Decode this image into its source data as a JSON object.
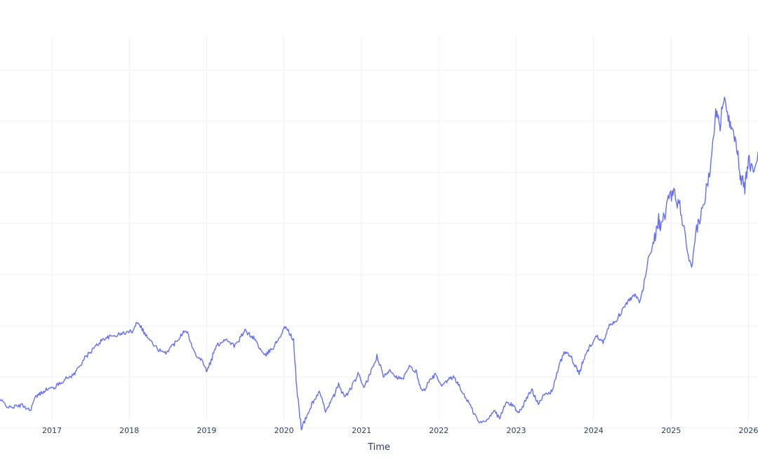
{
  "chart_data": {
    "type": "line",
    "title": "",
    "xlabel": "Time",
    "ylabel": "",
    "grid": true,
    "legend": "none",
    "xlim": [
      "2016-05-01",
      "2026-02-15"
    ],
    "ylim": [
      0,
      100
    ],
    "x_ticks": [
      "2017",
      "2018",
      "2019",
      "2020",
      "2021",
      "2022",
      "2023",
      "2024",
      "2025",
      "2026"
    ],
    "y_grid_values": [
      90,
      80,
      70,
      60,
      50,
      40,
      30,
      20
    ],
    "series": [
      {
        "color": "#636efa",
        "x": [
          "2016-05-01",
          "2016-06-15",
          "2016-08-15",
          "2016-09-20",
          "2016-10-15",
          "2016-12-01",
          "2017-01-15",
          "2017-03-01",
          "2017-04-15",
          "2017-06-01",
          "2017-07-15",
          "2017-09-01",
          "2017-10-15",
          "2017-12-01",
          "2018-01-15",
          "2018-02-10",
          "2018-03-15",
          "2018-05-01",
          "2018-06-15",
          "2018-08-01",
          "2018-09-25",
          "2018-11-01",
          "2018-12-15",
          "2019-01-03",
          "2019-02-15",
          "2019-04-01",
          "2019-05-15",
          "2019-07-01",
          "2019-08-15",
          "2019-10-01",
          "2019-11-15",
          "2019-12-20",
          "2020-01-10",
          "2020-02-15",
          "2020-03-01",
          "2020-03-23",
          "2020-04-15",
          "2020-05-15",
          "2020-06-15",
          "2020-07-15",
          "2020-08-15",
          "2020-09-15",
          "2020-10-15",
          "2020-11-15",
          "2020-12-15",
          "2021-01-15",
          "2021-02-15",
          "2021-03-15",
          "2021-04-15",
          "2021-05-15",
          "2021-06-15",
          "2021-07-15",
          "2021-08-15",
          "2021-09-15",
          "2021-10-15",
          "2021-11-15",
          "2021-12-15",
          "2022-01-15",
          "2022-02-15",
          "2022-03-15",
          "2022-04-15",
          "2022-05-15",
          "2022-06-15",
          "2022-07-10",
          "2022-08-15",
          "2022-09-15",
          "2022-10-15",
          "2022-11-15",
          "2022-12-15",
          "2023-01-15",
          "2023-02-15",
          "2023-03-15",
          "2023-04-15",
          "2023-05-15",
          "2023-06-15",
          "2023-07-15",
          "2023-08-15",
          "2023-09-15",
          "2023-10-25",
          "2023-11-15",
          "2023-12-15",
          "2024-01-15",
          "2024-02-15",
          "2024-03-15",
          "2024-04-15",
          "2024-05-15",
          "2024-06-15",
          "2024-07-15",
          "2024-08-05",
          "2024-08-20",
          "2024-09-15",
          "2024-10-15",
          "2024-11-01",
          "2024-11-15",
          "2024-12-15",
          "2025-01-10",
          "2025-02-15",
          "2025-03-15",
          "2025-04-08",
          "2025-05-01",
          "2025-06-01",
          "2025-07-01",
          "2025-07-20",
          "2025-08-05",
          "2025-08-20",
          "2025-09-10",
          "2025-10-01",
          "2025-10-20",
          "2025-11-10",
          "2025-11-25",
          "2025-12-15",
          "2026-01-01",
          "2026-01-20",
          "2026-02-15"
        ],
        "y": [
          25.5,
          24.0,
          24.5,
          23.5,
          26.0,
          27.5,
          28.0,
          29.5,
          30.5,
          33.5,
          35.5,
          37.5,
          38.0,
          38.5,
          39.0,
          41.0,
          38.5,
          36.0,
          34.5,
          36.5,
          39.5,
          35.0,
          33.0,
          31.0,
          36.0,
          37.5,
          36.0,
          39.0,
          37.5,
          34.0,
          36.0,
          38.5,
          40.0,
          37.0,
          28.0,
          20.0,
          22.0,
          25.0,
          27.0,
          23.5,
          25.5,
          28.5,
          26.0,
          28.0,
          30.5,
          28.0,
          31.0,
          34.0,
          30.0,
          31.5,
          30.0,
          29.5,
          32.0,
          31.0,
          27.0,
          29.0,
          30.5,
          28.0,
          29.5,
          30.0,
          27.5,
          25.5,
          23.0,
          21.0,
          21.5,
          23.5,
          22.0,
          25.0,
          24.5,
          23.0,
          25.5,
          27.5,
          25.0,
          26.5,
          27.0,
          31.0,
          35.0,
          34.0,
          30.5,
          33.5,
          36.0,
          38.0,
          37.0,
          40.0,
          41.0,
          43.0,
          45.0,
          46.0,
          44.5,
          47.0,
          53.0,
          57.0,
          61.0,
          59.0,
          64.0,
          66.0,
          63.0,
          55.0,
          51.0,
          59.0,
          63.0,
          70.0,
          78.0,
          83.0,
          79.0,
          86.0,
          80.0,
          79.0,
          74.0,
          69.0,
          67.0,
          73.0,
          70.0,
          74.0
        ]
      }
    ]
  }
}
